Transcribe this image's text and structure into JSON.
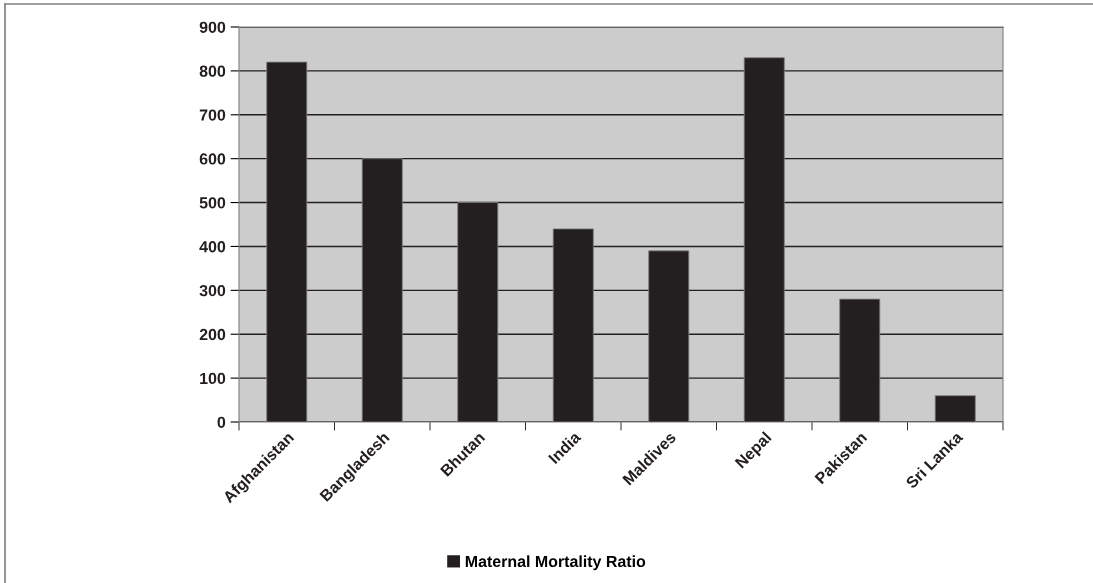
{
  "chart_data": {
    "type": "bar",
    "categories": [
      "Afghanistan",
      "Bangladesh",
      "Bhutan",
      "India",
      "Maldives",
      "Nepal",
      "Pakistan",
      "Sri Lanka"
    ],
    "series": [
      {
        "name": "Maternal Mortality Ratio",
        "color": "#231f20",
        "values": [
          820,
          600,
          500,
          440,
          390,
          830,
          280,
          60
        ]
      }
    ],
    "ylim": [
      0,
      900
    ],
    "yticks": [
      0,
      100,
      200,
      300,
      400,
      500,
      600,
      700,
      800,
      900
    ],
    "grid": "y",
    "legend": "bottom"
  }
}
